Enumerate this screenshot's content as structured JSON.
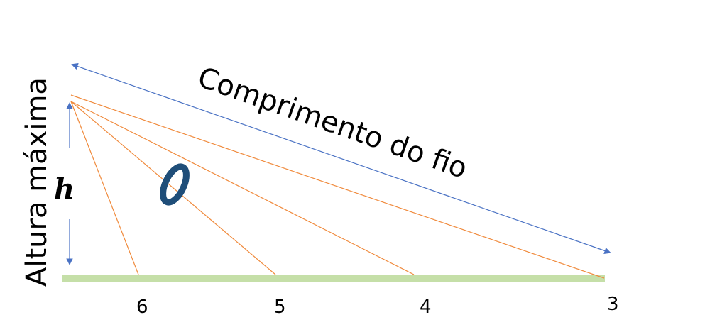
{
  "labels": {
    "wire_length": "Comprimento do fio",
    "max_height": "Altura máxima",
    "height_symbol": "h"
  },
  "positions": {
    "p6": "6",
    "p5": "5",
    "p4": "4",
    "p3": "3"
  },
  "colors": {
    "ground": "#c5dfa8",
    "wire_lines": "#f08a3c",
    "arrows": "#4a72c4",
    "ring": "#1f4e79"
  }
}
